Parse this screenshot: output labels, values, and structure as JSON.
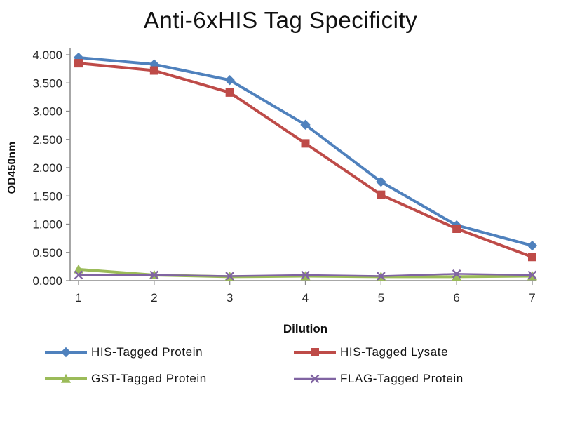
{
  "chart_data": {
    "type": "line",
    "title": "Anti-6xHIS Tag Specificity",
    "xlabel": "Dilution",
    "ylabel": "OD450nm",
    "x": [
      1,
      2,
      3,
      4,
      5,
      6,
      7
    ],
    "ylim": [
      0,
      4
    ],
    "ytick_step": 0.5,
    "ytick_labels": [
      "0.000",
      "0.500",
      "1.000",
      "1.500",
      "2.000",
      "2.500",
      "3.000",
      "3.500",
      "4.000"
    ],
    "grid": false,
    "legend_position": "bottom",
    "axis_color": "#8a8a8a",
    "text_color": "#262626",
    "series": [
      {
        "name": "HIS-Tagged Protein",
        "color": "#4F81BD",
        "marker": "diamond",
        "line_width": 4,
        "values": [
          3.95,
          3.83,
          3.55,
          2.76,
          1.75,
          0.98,
          0.62
        ]
      },
      {
        "name": "HIS-Tagged Lysate",
        "color": "#BE4B48",
        "marker": "square",
        "line_width": 4,
        "values": [
          3.85,
          3.72,
          3.33,
          2.43,
          1.52,
          0.92,
          0.42
        ]
      },
      {
        "name": "GST-Tagged Protein",
        "color": "#9BBB59",
        "marker": "triangle",
        "line_width": 4,
        "values": [
          0.2,
          0.1,
          0.07,
          0.08,
          0.07,
          0.07,
          0.08
        ]
      },
      {
        "name": "FLAG-Tagged Protein",
        "color": "#8064A2",
        "marker": "x",
        "line_width": 2.5,
        "values": [
          0.1,
          0.1,
          0.08,
          0.1,
          0.08,
          0.12,
          0.1
        ]
      }
    ]
  }
}
